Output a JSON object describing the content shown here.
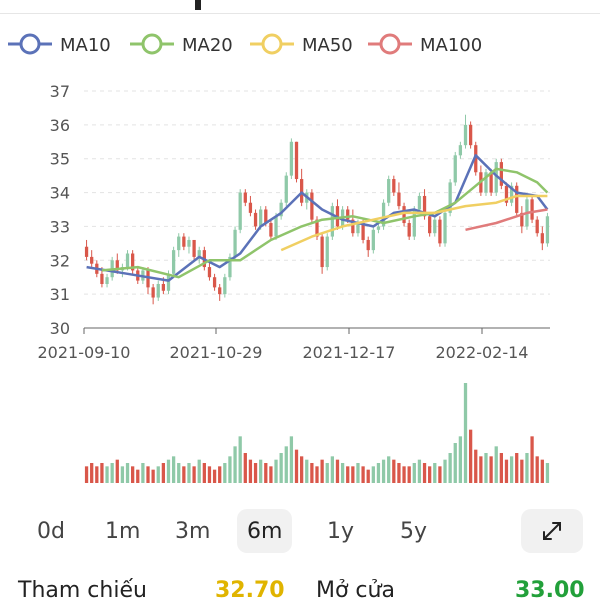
{
  "chart_data": {
    "type": "candlestick",
    "legend": [
      {
        "name": "MA10",
        "color": "#5b72b8"
      },
      {
        "name": "MA20",
        "color": "#8fc46b"
      },
      {
        "name": "MA50",
        "color": "#f0cf62"
      },
      {
        "name": "MA100",
        "color": "#e07b7b"
      }
    ],
    "legend_position": "top-left",
    "ylim": [
      30,
      37
    ],
    "yticks": [
      "30",
      "31",
      "32",
      "33",
      "34",
      "35",
      "36",
      "37"
    ],
    "xticks": [
      "2021-09-10",
      "2021-10-29",
      "2021-12-17",
      "2022-02-14"
    ],
    "grid": true,
    "up_color": "#8fc9a8",
    "down_color": "#d9574a",
    "candles": [
      [
        32.4,
        32.6,
        32.0,
        32.1
      ],
      [
        32.1,
        32.3,
        31.8,
        31.9
      ],
      [
        31.9,
        32.0,
        31.5,
        31.6
      ],
      [
        31.6,
        31.8,
        31.2,
        31.3
      ],
      [
        31.3,
        31.6,
        31.2,
        31.5
      ],
      [
        31.5,
        32.1,
        31.4,
        32.0
      ],
      [
        32.0,
        32.2,
        31.6,
        31.7
      ],
      [
        31.7,
        31.9,
        31.5,
        31.8
      ],
      [
        31.8,
        32.3,
        31.7,
        32.2
      ],
      [
        32.2,
        32.3,
        31.6,
        31.7
      ],
      [
        31.7,
        31.8,
        31.3,
        31.4
      ],
      [
        31.4,
        31.8,
        31.3,
        31.7
      ],
      [
        31.7,
        31.8,
        31.0,
        31.2
      ],
      [
        31.2,
        31.3,
        30.7,
        30.9
      ],
      [
        30.9,
        31.4,
        30.8,
        31.3
      ],
      [
        31.3,
        31.5,
        31.0,
        31.1
      ],
      [
        31.1,
        31.7,
        31.0,
        31.6
      ],
      [
        31.6,
        32.4,
        31.5,
        32.3
      ],
      [
        32.3,
        32.8,
        32.1,
        32.7
      ],
      [
        32.7,
        32.8,
        32.3,
        32.4
      ],
      [
        32.4,
        32.7,
        32.2,
        32.6
      ],
      [
        32.6,
        32.6,
        32.0,
        32.1
      ],
      [
        32.1,
        32.4,
        31.9,
        32.3
      ],
      [
        32.3,
        32.4,
        31.7,
        31.8
      ],
      [
        31.8,
        32.0,
        31.4,
        31.5
      ],
      [
        31.5,
        31.6,
        31.1,
        31.2
      ],
      [
        31.2,
        31.3,
        30.8,
        31.0
      ],
      [
        31.0,
        31.6,
        30.9,
        31.5
      ],
      [
        31.5,
        32.2,
        31.4,
        32.1
      ],
      [
        32.1,
        33.0,
        32.0,
        32.9
      ],
      [
        32.9,
        34.1,
        32.8,
        34.0
      ],
      [
        34.0,
        34.1,
        33.6,
        33.7
      ],
      [
        33.7,
        33.9,
        33.3,
        33.4
      ],
      [
        33.4,
        33.5,
        32.9,
        33.0
      ],
      [
        33.0,
        33.6,
        32.9,
        33.5
      ],
      [
        33.5,
        33.6,
        33.0,
        33.1
      ],
      [
        33.1,
        33.2,
        32.6,
        32.7
      ],
      [
        32.7,
        33.4,
        32.6,
        33.3
      ],
      [
        33.3,
        33.8,
        33.2,
        33.7
      ],
      [
        33.7,
        34.6,
        33.6,
        34.5
      ],
      [
        34.5,
        35.6,
        34.4,
        35.5
      ],
      [
        35.5,
        35.5,
        34.3,
        34.4
      ],
      [
        34.4,
        34.7,
        33.6,
        33.7
      ],
      [
        33.7,
        34.1,
        33.5,
        34.0
      ],
      [
        34.0,
        34.1,
        33.1,
        33.2
      ],
      [
        33.2,
        33.3,
        32.6,
        32.7
      ],
      [
        32.7,
        32.8,
        31.6,
        31.8
      ],
      [
        31.8,
        32.8,
        31.7,
        32.7
      ],
      [
        32.7,
        33.7,
        32.6,
        33.6
      ],
      [
        33.6,
        33.8,
        32.9,
        33.0
      ],
      [
        33.0,
        33.6,
        32.9,
        33.5
      ],
      [
        33.5,
        33.6,
        33.1,
        33.2
      ],
      [
        33.2,
        33.5,
        32.7,
        32.8
      ],
      [
        32.8,
        33.2,
        32.7,
        33.1
      ],
      [
        33.1,
        33.2,
        32.5,
        32.6
      ],
      [
        32.6,
        32.7,
        32.1,
        32.3
      ],
      [
        32.3,
        33.0,
        32.2,
        32.9
      ],
      [
        32.9,
        33.1,
        32.8,
        33.0
      ],
      [
        33.0,
        33.8,
        32.9,
        33.7
      ],
      [
        33.7,
        34.5,
        33.6,
        34.4
      ],
      [
        34.4,
        34.5,
        33.9,
        34.0
      ],
      [
        34.0,
        34.3,
        33.5,
        33.6
      ],
      [
        33.6,
        33.7,
        33.0,
        33.1
      ],
      [
        33.1,
        33.2,
        32.6,
        32.7
      ],
      [
        32.7,
        33.6,
        32.6,
        33.5
      ],
      [
        33.5,
        34.0,
        33.4,
        33.9
      ],
      [
        33.9,
        34.1,
        33.2,
        33.3
      ],
      [
        33.3,
        33.4,
        32.7,
        32.8
      ],
      [
        32.8,
        33.3,
        32.7,
        33.2
      ],
      [
        33.2,
        33.3,
        32.4,
        32.5
      ],
      [
        32.5,
        33.5,
        32.4,
        33.4
      ],
      [
        33.4,
        34.4,
        33.3,
        34.3
      ],
      [
        34.3,
        35.2,
        34.2,
        35.1
      ],
      [
        35.1,
        35.5,
        35.0,
        35.4
      ],
      [
        35.4,
        36.3,
        35.3,
        36.0
      ],
      [
        36.0,
        36.1,
        35.3,
        35.4
      ],
      [
        35.4,
        35.5,
        34.5,
        34.6
      ],
      [
        34.6,
        34.8,
        33.9,
        34.0
      ],
      [
        34.0,
        34.7,
        33.9,
        34.6
      ],
      [
        34.6,
        34.7,
        33.9,
        34.0
      ],
      [
        34.0,
        35.0,
        33.9,
        34.9
      ],
      [
        34.9,
        35.0,
        34.1,
        34.2
      ],
      [
        34.2,
        34.3,
        33.6,
        33.7
      ],
      [
        33.7,
        34.3,
        33.6,
        34.2
      ],
      [
        34.2,
        34.3,
        33.3,
        33.4
      ],
      [
        33.4,
        33.6,
        32.8,
        33.0
      ],
      [
        33.0,
        33.9,
        32.9,
        33.8
      ],
      [
        33.8,
        33.9,
        33.1,
        33.2
      ],
      [
        33.2,
        33.3,
        32.7,
        32.8
      ],
      [
        32.8,
        33.0,
        32.3,
        32.5
      ],
      [
        32.5,
        33.4,
        32.4,
        33.3
      ]
    ],
    "volumes": [
      5,
      6,
      5,
      6,
      5,
      6,
      7,
      5,
      6,
      5,
      4,
      6,
      5,
      4,
      5,
      6,
      7,
      8,
      6,
      5,
      6,
      5,
      7,
      6,
      5,
      4,
      5,
      6,
      8,
      11,
      14,
      9,
      7,
      6,
      7,
      6,
      5,
      7,
      9,
      11,
      14,
      10,
      8,
      7,
      6,
      5,
      7,
      6,
      8,
      7,
      6,
      5,
      5,
      6,
      5,
      4,
      5,
      6,
      7,
      8,
      7,
      6,
      5,
      5,
      6,
      7,
      6,
      5,
      6,
      5,
      7,
      9,
      12,
      14,
      30,
      16,
      10,
      8,
      9,
      8,
      11,
      9,
      7,
      8,
      9,
      7,
      9,
      14,
      8,
      7,
      6
    ],
    "ma": {
      "MA10": [
        [
          0,
          31.8
        ],
        [
          8,
          31.6
        ],
        [
          16,
          31.4
        ],
        [
          22,
          32.1
        ],
        [
          26,
          31.8
        ],
        [
          30,
          32.2
        ],
        [
          34,
          33.0
        ],
        [
          38,
          33.4
        ],
        [
          42,
          34.0
        ],
        [
          46,
          33.5
        ],
        [
          50,
          33.2
        ],
        [
          56,
          33.0
        ],
        [
          60,
          33.4
        ],
        [
          64,
          33.5
        ],
        [
          68,
          33.3
        ],
        [
          72,
          33.7
        ],
        [
          76,
          35.1
        ],
        [
          80,
          34.5
        ],
        [
          84,
          34.0
        ],
        [
          88,
          33.9
        ],
        [
          90,
          33.5
        ]
      ],
      "MA20": [
        [
          3,
          31.7
        ],
        [
          10,
          31.8
        ],
        [
          18,
          31.5
        ],
        [
          24,
          32.0
        ],
        [
          30,
          32.0
        ],
        [
          36,
          32.6
        ],
        [
          42,
          33.0
        ],
        [
          46,
          33.2
        ],
        [
          52,
          33.3
        ],
        [
          58,
          33.1
        ],
        [
          64,
          33.3
        ],
        [
          68,
          33.4
        ],
        [
          72,
          33.7
        ],
        [
          76,
          34.2
        ],
        [
          80,
          34.7
        ],
        [
          84,
          34.6
        ],
        [
          88,
          34.3
        ],
        [
          90,
          34.0
        ]
      ],
      "MA50": [
        [
          38,
          32.3
        ],
        [
          44,
          32.7
        ],
        [
          50,
          33.0
        ],
        [
          56,
          33.2
        ],
        [
          62,
          33.4
        ],
        [
          68,
          33.4
        ],
        [
          74,
          33.6
        ],
        [
          80,
          33.7
        ],
        [
          84,
          33.9
        ],
        [
          90,
          33.9
        ]
      ],
      "MA100": [
        [
          74,
          32.9
        ],
        [
          80,
          33.1
        ],
        [
          86,
          33.4
        ],
        [
          90,
          33.5
        ]
      ]
    }
  },
  "ranges": {
    "items": [
      {
        "label": "0d",
        "name": "range-0d"
      },
      {
        "label": "1m",
        "name": "range-1m"
      },
      {
        "label": "3m",
        "name": "range-3m"
      },
      {
        "label": "6m",
        "name": "range-6m"
      },
      {
        "label": "1y",
        "name": "range-1y"
      },
      {
        "label": "5y",
        "name": "range-5y"
      }
    ],
    "active": "6m",
    "expand_icon": "expand-icon"
  },
  "stats": {
    "ref_label": "Tham chiếu",
    "ref_value": "32.70",
    "open_label": "Mở cửa",
    "open_value": "33.00"
  }
}
